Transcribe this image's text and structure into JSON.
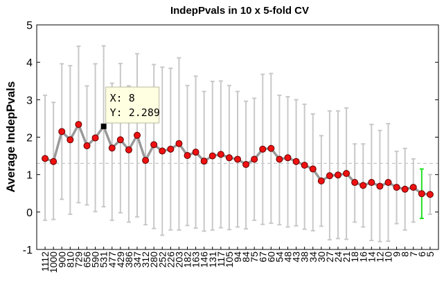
{
  "chart_data": {
    "type": "line",
    "title": "IndepPvals in 10 x 5-fold CV",
    "xlabel": "",
    "ylabel": "Average IndepPvals",
    "ylim": [
      -1,
      5
    ],
    "yticks": [
      "-1",
      "0",
      "1",
      "2",
      "3",
      "4",
      "5"
    ],
    "grid": false,
    "reference_line": 1.301,
    "categories": [
      "1112",
      "1000",
      "900",
      "810",
      "729",
      "656",
      "590",
      "531",
      "477",
      "429",
      "386",
      "347",
      "312",
      "280",
      "252",
      "226",
      "203",
      "182",
      "163",
      "146",
      "131",
      "117",
      "105",
      "94",
      "84",
      "75",
      "67",
      "60",
      "54",
      "48",
      "43",
      "38",
      "34",
      "30",
      "27",
      "24",
      "21",
      "18",
      "16",
      "14",
      "12",
      "10",
      "9",
      "8",
      "7",
      "6",
      "5"
    ],
    "values": [
      1.43,
      1.35,
      2.15,
      1.93,
      2.34,
      1.77,
      1.98,
      2.289,
      1.71,
      1.93,
      1.66,
      2.05,
      1.38,
      1.8,
      1.63,
      1.68,
      1.83,
      1.51,
      1.6,
      1.36,
      1.5,
      1.54,
      1.45,
      1.41,
      1.27,
      1.41,
      1.68,
      1.7,
      1.41,
      1.45,
      1.35,
      1.25,
      1.15,
      0.83,
      0.97,
      0.99,
      1.03,
      0.79,
      0.71,
      0.79,
      0.69,
      0.79,
      0.66,
      0.61,
      0.66,
      0.49,
      0.47
    ],
    "upper": [
      3.12,
      2.93,
      3.96,
      3.91,
      4.43,
      3.37,
      3.96,
      4.44,
      3.44,
      3.97,
      3.37,
      4.23,
      3.1,
      3.94,
      3.87,
      3.84,
      4.12,
      3.38,
      3.63,
      3.22,
      3.49,
      3.5,
      3.38,
      3.22,
      2.96,
      3.04,
      3.68,
      3.7,
      3.12,
      3.08,
      3.0,
      2.88,
      2.62,
      2.04,
      2.7,
      2.7,
      2.78,
      1.82,
      1.82,
      2.34,
      2.18,
      2.36,
      1.62,
      1.7,
      1.42,
      1.15,
      1.0
    ],
    "lower": [
      -0.22,
      -0.2,
      0.34,
      -0.06,
      0.25,
      0.19,
      0.01,
      0.14,
      -0.22,
      -0.02,
      -0.27,
      -0.13,
      -0.34,
      -0.44,
      -0.62,
      -0.48,
      -0.48,
      -0.36,
      -0.43,
      -0.51,
      -0.48,
      -0.42,
      -0.47,
      -0.4,
      -0.45,
      -0.22,
      -0.33,
      -0.3,
      -0.34,
      -0.4,
      -0.37,
      -0.46,
      -0.5,
      -0.38,
      -0.74,
      -0.71,
      -0.73,
      -0.27,
      -0.4,
      -0.76,
      -0.79,
      -0.78,
      -0.31,
      -0.48,
      -0.27,
      -0.17,
      -0.06
    ],
    "highlight_index": 45,
    "datatip": {
      "index": 7,
      "x_label": "X: 8",
      "y_label": "Y: 2.289"
    },
    "colors": {
      "line": "#999999",
      "error_bar": "#c8c8c8",
      "highlight_bar": "#22e022",
      "marker_fill": "#ee1111",
      "marker_edge": "#660000",
      "ref_line": "#bbbbbb",
      "tip_bg": "#ffffe1"
    }
  }
}
